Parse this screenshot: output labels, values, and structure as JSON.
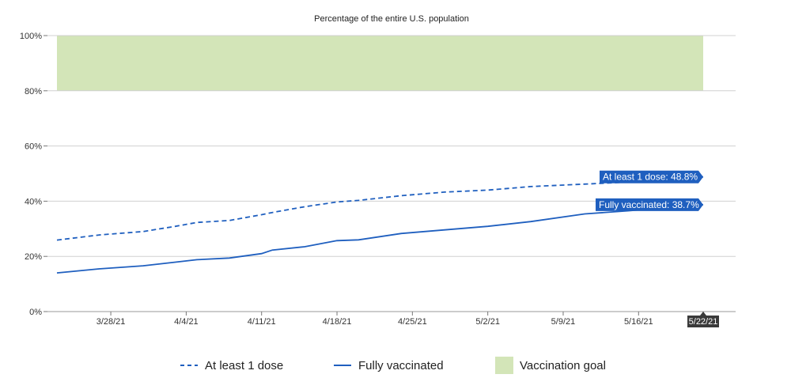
{
  "chart_data": {
    "type": "line",
    "subtitle": "Percentage of the entire U.S. population",
    "y_tick_labels": [
      "0%",
      "20%",
      "40%",
      "60%",
      "80%",
      "100%"
    ],
    "ylim": [
      0,
      100
    ],
    "x_tick_labels": [
      "3/28/21",
      "4/4/21",
      "4/11/21",
      "4/18/21",
      "4/25/21",
      "5/2/21",
      "5/9/21",
      "5/16/21",
      "5/22/21"
    ],
    "x_range": [
      "3/23/21",
      "5/24/21"
    ],
    "grid": "horizontal",
    "legend_position": "bottom",
    "series": [
      {
        "name": "At least 1 dose",
        "style": "dashed",
        "color": "#1f5fbf",
        "callout": "At least 1 dose: 48.8%",
        "points": [
          [
            "3/23/21",
            25.9
          ],
          [
            "3/27/21",
            27.8
          ],
          [
            "3/31/21",
            29.0
          ],
          [
            "4/3/21",
            30.9
          ],
          [
            "4/5/21",
            32.3
          ],
          [
            "4/8/21",
            33.0
          ],
          [
            "4/11/21",
            35.1
          ],
          [
            "4/12/21",
            35.9
          ],
          [
            "4/15/21",
            38.0
          ],
          [
            "4/18/21",
            39.7
          ],
          [
            "4/20/21",
            40.3
          ],
          [
            "4/24/21",
            42.0
          ],
          [
            "4/28/21",
            43.3
          ],
          [
            "5/2/21",
            44.0
          ],
          [
            "5/6/21",
            45.3
          ],
          [
            "5/11/21",
            46.2
          ],
          [
            "5/15/21",
            46.9
          ],
          [
            "5/22/21",
            48.8
          ]
        ]
      },
      {
        "name": "Fully vaccinated",
        "style": "solid",
        "color": "#1f5fbf",
        "callout": "Fully vaccinated: 38.7%",
        "points": [
          [
            "3/23/21",
            14.0
          ],
          [
            "3/27/21",
            15.5
          ],
          [
            "3/31/21",
            16.6
          ],
          [
            "4/3/21",
            17.9
          ],
          [
            "4/5/21",
            18.8
          ],
          [
            "4/8/21",
            19.4
          ],
          [
            "4/11/21",
            21.0
          ],
          [
            "4/12/21",
            22.3
          ],
          [
            "4/15/21",
            23.5
          ],
          [
            "4/18/21",
            25.7
          ],
          [
            "4/20/21",
            26.0
          ],
          [
            "4/24/21",
            28.3
          ],
          [
            "4/28/21",
            29.6
          ],
          [
            "5/2/21",
            30.9
          ],
          [
            "5/6/21",
            32.6
          ],
          [
            "5/11/21",
            35.4
          ],
          [
            "5/15/21",
            36.5
          ],
          [
            "5/22/21",
            38.7
          ]
        ]
      }
    ],
    "goal_band": {
      "name": "Vaccination goal",
      "ymin": 80,
      "ymax": 100,
      "x_start": "3/23/21",
      "x_end": "5/22/21",
      "color": "#d3e5b8"
    },
    "hover_label": "5/22/21"
  },
  "legend": {
    "items": [
      {
        "label": "At least 1 dose",
        "kind": "dashed-line",
        "color": "#1f5fbf"
      },
      {
        "label": "Fully vaccinated",
        "kind": "solid-line",
        "color": "#1f5fbf"
      },
      {
        "label": "Vaccination goal",
        "kind": "swatch",
        "color": "#d3e5b8"
      }
    ]
  },
  "colors": {
    "series": "#1f5fbf",
    "callout_bg": "#1f5fbf",
    "goal": "#d3e5b8",
    "grid": "#d0d0d0",
    "hover_bg": "#3a3a3a"
  }
}
